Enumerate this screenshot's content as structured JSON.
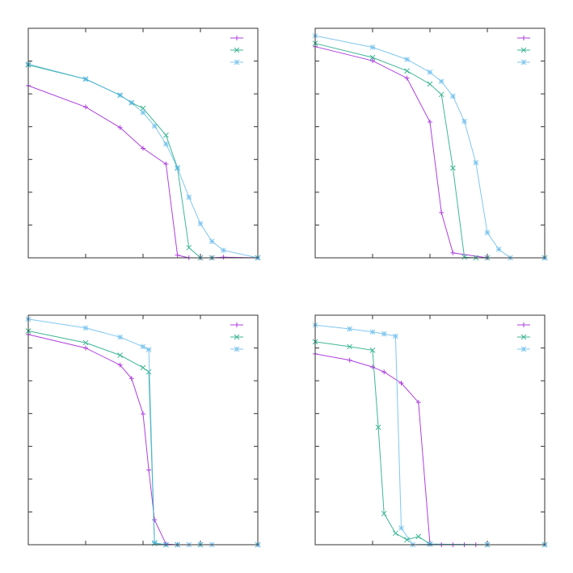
{
  "colors": [
    "#9400d3",
    "#009e73",
    "#56b4e9"
  ],
  "markers": [
    "plus",
    "cross",
    "star"
  ],
  "chart_data": [
    {
      "type": "line",
      "title": "",
      "xlabel": "",
      "ylabel": "",
      "xlim": [
        0,
        4
      ],
      "ylim": [
        0,
        7
      ],
      "xticks": [
        0,
        1,
        2,
        3,
        4
      ],
      "yticks": [
        0,
        1,
        2,
        3,
        4,
        5,
        6,
        7
      ],
      "tick_labels_shown": false,
      "grid": false,
      "legend": "top-right",
      "series": [
        {
          "x": [
            0,
            1,
            1.6,
            2,
            2.4,
            2.6,
            2.8,
            3,
            3.2,
            3.4,
            4
          ],
          "y": [
            5.25,
            4.6,
            3.97,
            3.34,
            2.86,
            0.08,
            0,
            0,
            0,
            0.02,
            0
          ]
        },
        {
          "x": [
            0,
            1,
            1.6,
            1.8,
            2,
            2.4,
            2.6,
            2.8,
            3,
            3.2,
            4
          ],
          "y": [
            5.88,
            5.45,
            4.96,
            4.73,
            4.56,
            3.74,
            2.74,
            0.31,
            0,
            0,
            0
          ]
        },
        {
          "x": [
            0,
            1,
            1.6,
            1.8,
            2,
            2.2,
            2.4,
            2.6,
            2.8,
            3,
            3.2,
            3.4,
            4
          ],
          "y": [
            5.91,
            5.45,
            4.96,
            4.73,
            4.43,
            4.02,
            3.47,
            2.74,
            1.85,
            1.04,
            0.5,
            0.23,
            0
          ]
        }
      ]
    },
    {
      "type": "line",
      "title": "",
      "xlabel": "",
      "ylabel": "",
      "xlim": [
        0,
        4
      ],
      "ylim": [
        0,
        7
      ],
      "xticks": [
        0,
        1,
        2,
        3,
        4
      ],
      "yticks": [
        0,
        1,
        2,
        3,
        4,
        5,
        6,
        7
      ],
      "tick_labels_shown": false,
      "grid": false,
      "legend": "top-right",
      "series": [
        {
          "x": [
            0,
            1,
            1.6,
            2,
            2.2,
            2.4,
            3,
            4
          ],
          "y": [
            6.44,
            6.01,
            5.48,
            4.14,
            1.38,
            0.15,
            0,
            0
          ]
        },
        {
          "x": [
            0,
            1,
            1.6,
            2,
            2.2,
            2.4,
            2.6,
            2.8,
            3,
            4
          ],
          "y": [
            6.54,
            6.11,
            5.7,
            5.3,
            4.98,
            2.74,
            0.02,
            0,
            0,
            0
          ]
        },
        {
          "x": [
            0,
            1,
            1.6,
            2,
            2.2,
            2.4,
            2.6,
            2.8,
            3,
            3.2,
            3.4,
            4
          ],
          "y": [
            6.77,
            6.42,
            6.05,
            5.66,
            5.38,
            4.93,
            4.16,
            2.9,
            0.77,
            0.26,
            0,
            0
          ]
        }
      ]
    },
    {
      "type": "line",
      "title": "",
      "xlabel": "",
      "ylabel": "",
      "xlim": [
        0,
        4
      ],
      "ylim": [
        0,
        7
      ],
      "xticks": [
        0,
        1,
        2,
        3,
        4
      ],
      "yticks": [
        0,
        1,
        2,
        3,
        4,
        5,
        6,
        7
      ],
      "tick_labels_shown": false,
      "grid": false,
      "legend": "top-right",
      "series": [
        {
          "x": [
            0,
            1,
            1.6,
            1.8,
            2,
            2.1,
            2.2,
            2.4,
            2.6,
            4
          ],
          "y": [
            6.41,
            6.0,
            5.48,
            5.07,
            3.99,
            2.28,
            0.76,
            0.02,
            0,
            0
          ]
        },
        {
          "x": [
            0,
            1,
            1.6,
            2,
            2.1,
            2.2,
            2.4,
            2.6,
            3,
            4
          ],
          "y": [
            6.52,
            6.16,
            5.78,
            5.4,
            5.27,
            0.04,
            0,
            0,
            0,
            0
          ]
        },
        {
          "x": [
            0,
            1,
            1.6,
            2,
            2.1,
            2.2,
            2.4,
            2.6,
            2.8,
            3,
            3.2,
            4
          ],
          "y": [
            6.88,
            6.61,
            6.33,
            6.04,
            5.95,
            0.06,
            0,
            0,
            0,
            0,
            0,
            0
          ]
        }
      ]
    },
    {
      "type": "line",
      "title": "",
      "xlabel": "",
      "ylabel": "",
      "xlim": [
        0,
        4
      ],
      "ylim": [
        0,
        7
      ],
      "xticks": [
        0,
        1,
        2,
        3,
        4
      ],
      "yticks": [
        0,
        1,
        2,
        3,
        4,
        5,
        6,
        7
      ],
      "tick_labels_shown": false,
      "grid": false,
      "legend": "top-right",
      "series": [
        {
          "x": [
            0,
            0.6,
            1,
            1.2,
            1.5,
            1.8,
            2,
            2.2,
            2.4,
            2.6,
            2.8,
            3,
            4
          ],
          "y": [
            5.82,
            5.63,
            5.42,
            5.27,
            4.93,
            4.34,
            0.02,
            0,
            0,
            0,
            0,
            0,
            0
          ]
        },
        {
          "x": [
            0,
            0.6,
            1,
            1.1,
            1.2,
            1.4,
            1.6,
            1.8,
            2,
            3,
            4
          ],
          "y": [
            6.19,
            6.04,
            5.93,
            3.58,
            0.95,
            0.35,
            0.15,
            0.25,
            0.02,
            0,
            0
          ]
        },
        {
          "x": [
            0,
            0.6,
            1,
            1.2,
            1.4,
            1.5,
            1.7,
            2,
            3,
            4
          ],
          "y": [
            6.7,
            6.58,
            6.49,
            6.43,
            6.36,
            0.51,
            0,
            0.02,
            0,
            0
          ]
        }
      ]
    }
  ]
}
